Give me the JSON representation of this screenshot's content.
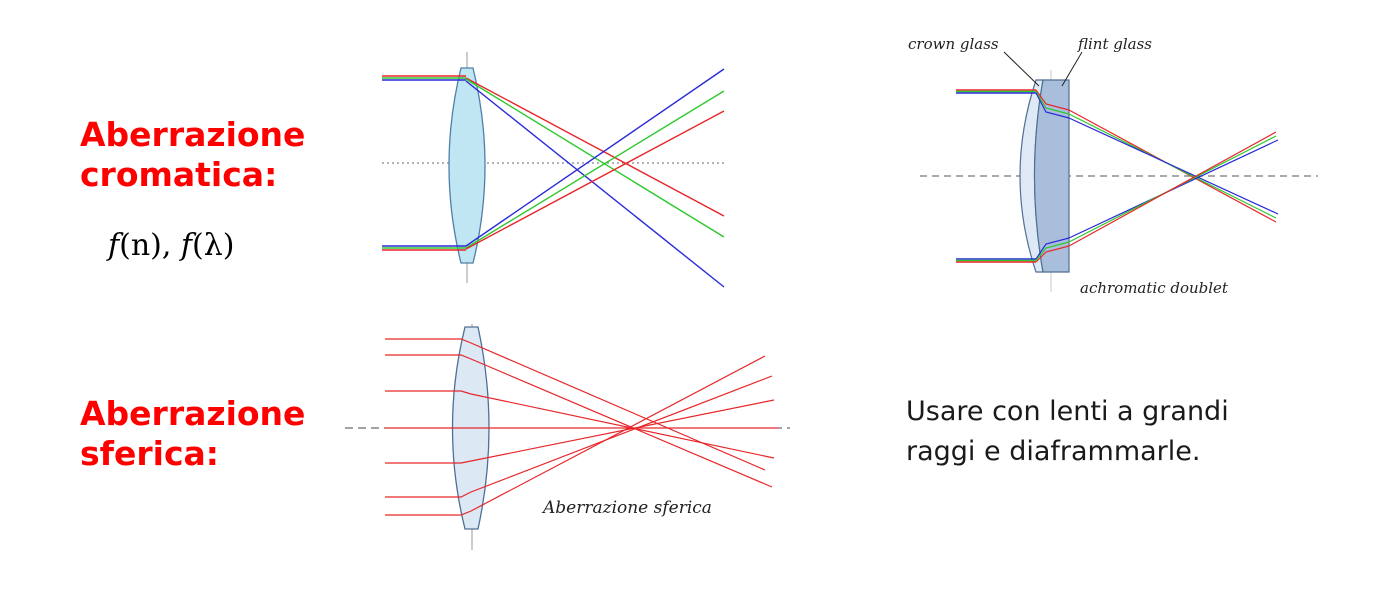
{
  "chromatic": {
    "heading_line1": "Aberrazione",
    "heading_line2": "cromatica:",
    "formula": {
      "part1": "f",
      "part2": "(n), ",
      "part3": "f",
      "part4": "(λ)"
    }
  },
  "doublet": {
    "crown_label": "crown glass",
    "flint_label": "flint glass",
    "caption": "achromatic doublet"
  },
  "spherical": {
    "heading_line1": "Aberrazione",
    "heading_line2": "sferica:",
    "caption": "Aberrazione sferica"
  },
  "advice": {
    "line1": "Usare con lenti a grandi",
    "line2": "raggi e diaframmarle."
  },
  "colors": {
    "heading": "#ff0000",
    "ray_red": "#e8262a",
    "ray_green": "#2ec82e",
    "ray_blue": "#2a2ad8",
    "lens_fill": "#bfe6f2",
    "flint_fill": "#a9bedb"
  }
}
